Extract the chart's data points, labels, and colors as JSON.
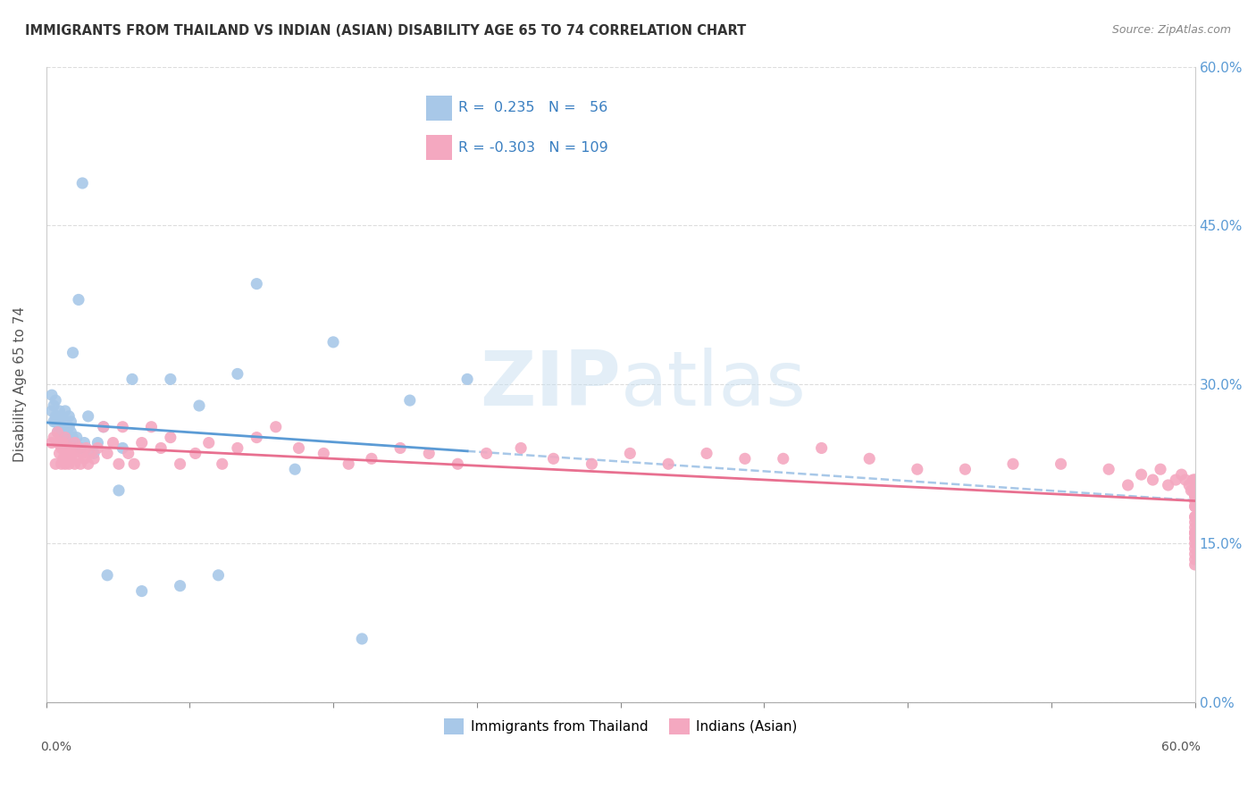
{
  "title": "IMMIGRANTS FROM THAILAND VS INDIAN (ASIAN) DISABILITY AGE 65 TO 74 CORRELATION CHART",
  "source": "Source: ZipAtlas.com",
  "ylabel": "Disability Age 65 to 74",
  "legend_label1": "Immigrants from Thailand",
  "legend_label2": "Indians (Asian)",
  "R1": 0.235,
  "N1": 56,
  "R2": -0.303,
  "N2": 109,
  "color1": "#A8C8E8",
  "color2": "#F4A8C0",
  "line_color1": "#5B9BD5",
  "line_color2": "#E87090",
  "dash_color": "#A8C8E8",
  "background_color": "#FFFFFF",
  "watermark_zip": "ZIP",
  "watermark_atlas": "atlas",
  "xlim": [
    0.0,
    0.6
  ],
  "ylim": [
    0.0,
    0.6
  ],
  "ytick_vals": [
    0.0,
    0.15,
    0.3,
    0.45,
    0.6
  ],
  "xtick_vals": [
    0.0,
    0.075,
    0.15,
    0.225,
    0.3,
    0.375,
    0.45,
    0.525,
    0.6
  ],
  "grid_color": "#DDDDDD",
  "thailand_x": [
    0.003,
    0.003,
    0.004,
    0.004,
    0.005,
    0.005,
    0.005,
    0.006,
    0.006,
    0.007,
    0.007,
    0.007,
    0.008,
    0.008,
    0.008,
    0.009,
    0.009,
    0.009,
    0.01,
    0.01,
    0.01,
    0.01,
    0.011,
    0.011,
    0.012,
    0.012,
    0.013,
    0.013,
    0.014,
    0.014,
    0.015,
    0.016,
    0.017,
    0.018,
    0.019,
    0.02,
    0.022,
    0.025,
    0.027,
    0.03,
    0.032,
    0.038,
    0.04,
    0.045,
    0.05,
    0.065,
    0.07,
    0.08,
    0.09,
    0.1,
    0.11,
    0.13,
    0.15,
    0.165,
    0.19,
    0.22
  ],
  "thailand_y": [
    0.275,
    0.29,
    0.28,
    0.265,
    0.27,
    0.285,
    0.265,
    0.255,
    0.27,
    0.26,
    0.275,
    0.265,
    0.25,
    0.26,
    0.27,
    0.245,
    0.255,
    0.265,
    0.245,
    0.255,
    0.265,
    0.275,
    0.25,
    0.26,
    0.26,
    0.27,
    0.255,
    0.265,
    0.25,
    0.33,
    0.245,
    0.25,
    0.38,
    0.24,
    0.49,
    0.245,
    0.27,
    0.235,
    0.245,
    0.26,
    0.12,
    0.2,
    0.24,
    0.305,
    0.105,
    0.305,
    0.11,
    0.28,
    0.12,
    0.31,
    0.395,
    0.22,
    0.34,
    0.06,
    0.285,
    0.305
  ],
  "indian_x": [
    0.003,
    0.004,
    0.005,
    0.006,
    0.006,
    0.007,
    0.007,
    0.008,
    0.008,
    0.009,
    0.009,
    0.01,
    0.01,
    0.01,
    0.011,
    0.011,
    0.012,
    0.012,
    0.013,
    0.013,
    0.014,
    0.015,
    0.015,
    0.016,
    0.017,
    0.018,
    0.019,
    0.02,
    0.021,
    0.022,
    0.023,
    0.025,
    0.027,
    0.03,
    0.032,
    0.035,
    0.038,
    0.04,
    0.043,
    0.046,
    0.05,
    0.055,
    0.06,
    0.065,
    0.07,
    0.078,
    0.085,
    0.092,
    0.1,
    0.11,
    0.12,
    0.132,
    0.145,
    0.158,
    0.17,
    0.185,
    0.2,
    0.215,
    0.23,
    0.248,
    0.265,
    0.285,
    0.305,
    0.325,
    0.345,
    0.365,
    0.385,
    0.405,
    0.43,
    0.455,
    0.48,
    0.505,
    0.53,
    0.555,
    0.565,
    0.572,
    0.578,
    0.582,
    0.586,
    0.59,
    0.593,
    0.595,
    0.597,
    0.598,
    0.599,
    0.599,
    0.6,
    0.6,
    0.6,
    0.6,
    0.6,
    0.6,
    0.6,
    0.6,
    0.6,
    0.6,
    0.6,
    0.6,
    0.6,
    0.6,
    0.6,
    0.6,
    0.6,
    0.6,
    0.6,
    0.6,
    0.6,
    0.6,
    0.6
  ],
  "indian_y": [
    0.245,
    0.25,
    0.225,
    0.245,
    0.255,
    0.235,
    0.245,
    0.225,
    0.24,
    0.23,
    0.245,
    0.225,
    0.235,
    0.25,
    0.23,
    0.24,
    0.235,
    0.225,
    0.24,
    0.23,
    0.235,
    0.225,
    0.245,
    0.23,
    0.24,
    0.225,
    0.235,
    0.23,
    0.24,
    0.225,
    0.235,
    0.23,
    0.24,
    0.26,
    0.235,
    0.245,
    0.225,
    0.26,
    0.235,
    0.225,
    0.245,
    0.26,
    0.24,
    0.25,
    0.225,
    0.235,
    0.245,
    0.225,
    0.24,
    0.25,
    0.26,
    0.24,
    0.235,
    0.225,
    0.23,
    0.24,
    0.235,
    0.225,
    0.235,
    0.24,
    0.23,
    0.225,
    0.235,
    0.225,
    0.235,
    0.23,
    0.23,
    0.24,
    0.23,
    0.22,
    0.22,
    0.225,
    0.225,
    0.22,
    0.205,
    0.215,
    0.21,
    0.22,
    0.205,
    0.21,
    0.215,
    0.21,
    0.205,
    0.2,
    0.21,
    0.2,
    0.21,
    0.195,
    0.21,
    0.195,
    0.2,
    0.195,
    0.185,
    0.19,
    0.185,
    0.175,
    0.17,
    0.175,
    0.165,
    0.16,
    0.155,
    0.15,
    0.145,
    0.14,
    0.135,
    0.13,
    0.155,
    0.16,
    0.16
  ]
}
